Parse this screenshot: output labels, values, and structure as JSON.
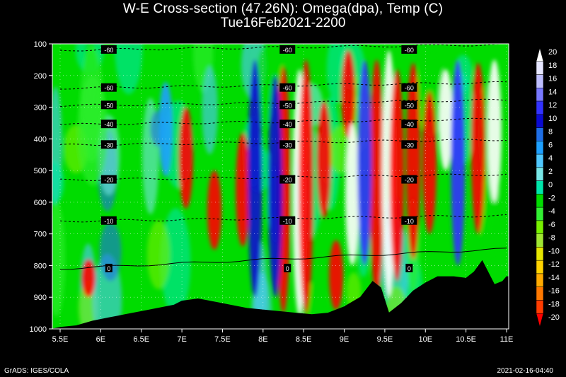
{
  "chart_data": {
    "type": "heatmap",
    "title": "W-E Cross-section (47.26N): Omega(dpa), Temp (C)",
    "subtitle": "Tue16Feb2021-2200",
    "x_ticks": [
      "5.5E",
      "6E",
      "6.5E",
      "7E",
      "7.5E",
      "8E",
      "8.5E",
      "9E",
      "9.5E",
      "10E",
      "10.5E",
      "11E"
    ],
    "x_values": [
      5.5,
      6,
      6.5,
      7,
      7.5,
      8,
      8.5,
      9,
      9.5,
      10,
      10.5,
      11
    ],
    "y_ticks": [
      "100",
      "200",
      "300",
      "400",
      "500",
      "600",
      "700",
      "800",
      "900",
      "1000"
    ],
    "y_values": [
      100,
      200,
      300,
      400,
      500,
      600,
      700,
      800,
      900,
      1000
    ],
    "xlim": [
      5.5,
      11
    ],
    "ylim": [
      1000,
      100
    ],
    "colorbar_levels": [
      "20",
      "18",
      "16",
      "14",
      "12",
      "10",
      "8",
      "6",
      "4",
      "2",
      "0",
      "-2",
      "-4",
      "-6",
      "-8",
      "-10",
      "-12",
      "-14",
      "-16",
      "-18",
      "-20"
    ],
    "colorbar_colors": [
      "#ffffff",
      "#e6e6ff",
      "#bebeff",
      "#7878ff",
      "#3232ff",
      "#0a0ad2",
      "#1e6ee6",
      "#1ea0ff",
      "#50c8ff",
      "#78e6e6",
      "#00e6aa",
      "#00dc00",
      "#32f032",
      "#78f000",
      "#a0e632",
      "#e6e600",
      "#ffd200",
      "#ffaa00",
      "#ff7800",
      "#ff3c00",
      "#ff0000"
    ],
    "temperature_isotherms": [
      {
        "label": "-60",
        "p": 120
      },
      {
        "label": "-60",
        "p": 240
      },
      {
        "label": "-50",
        "p": 295
      },
      {
        "label": "-40",
        "p": 355
      },
      {
        "label": "-30",
        "p": 420
      },
      {
        "label": "-20",
        "p": 530
      },
      {
        "label": "-10",
        "p": 660
      },
      {
        "label": "0",
        "p": 810
      }
    ],
    "terrain_pressure": [
      [
        5.5,
        995
      ],
      [
        5.7,
        990
      ],
      [
        5.9,
        975
      ],
      [
        6.1,
        965
      ],
      [
        6.3,
        955
      ],
      [
        6.5,
        945
      ],
      [
        6.7,
        935
      ],
      [
        6.9,
        925
      ],
      [
        7.0,
        912
      ],
      [
        7.2,
        905
      ],
      [
        7.4,
        915
      ],
      [
        7.6,
        925
      ],
      [
        7.8,
        935
      ],
      [
        8.0,
        940
      ],
      [
        8.2,
        945
      ],
      [
        8.4,
        950
      ],
      [
        8.6,
        955
      ],
      [
        8.8,
        950
      ],
      [
        9.0,
        930
      ],
      [
        9.2,
        900
      ],
      [
        9.35,
        850
      ],
      [
        9.45,
        870
      ],
      [
        9.55,
        950
      ],
      [
        9.7,
        920
      ],
      [
        9.85,
        880
      ],
      [
        10.0,
        855
      ],
      [
        10.15,
        835
      ],
      [
        10.35,
        835
      ],
      [
        10.5,
        840
      ],
      [
        10.6,
        820
      ],
      [
        10.7,
        785
      ],
      [
        10.85,
        860
      ],
      [
        10.95,
        850
      ],
      [
        11.0,
        835
      ]
    ]
  },
  "footer": {
    "left": "GrADS: IGES/COLA",
    "right": "2021-02-16-04:40"
  }
}
